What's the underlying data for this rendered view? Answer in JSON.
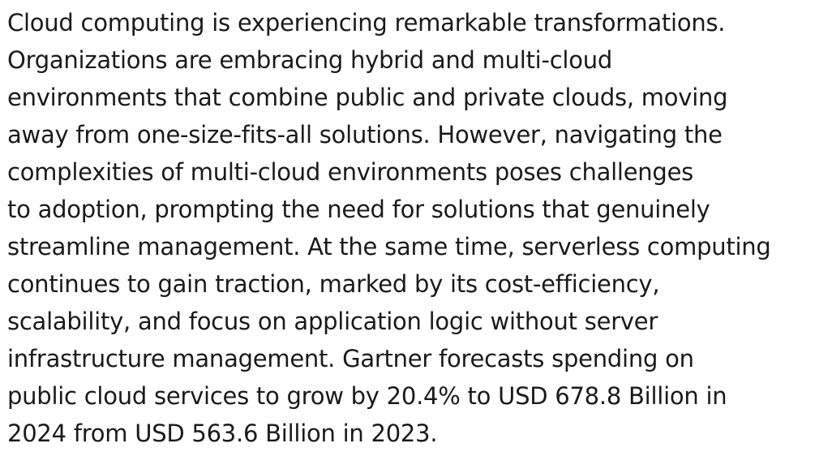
{
  "paragraph": {
    "lines": [
      "Cloud computing is experiencing remarkable transformations.",
      "Organizations are embracing hybrid and multi-cloud",
      "environments that combine public and private clouds, moving",
      "away from one-size-fits-all solutions. However, navigating the",
      "complexities of multi-cloud environments poses challenges",
      "to adoption, prompting the need for solutions that genuinely",
      "streamline management. At the same time, serverless computing",
      "continues to gain traction, marked by its cost-efficiency,",
      "scalability, and focus on application logic without server",
      "infrastructure management. Gartner forecasts spending on",
      "public cloud services to grow by 20.4% to USD 678.8 Billion in",
      "2024 from USD 563.6 Billion in 2023."
    ]
  }
}
